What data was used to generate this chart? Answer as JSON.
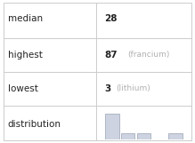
{
  "median": 28,
  "highest_value": 87,
  "highest_label": "francium",
  "lowest_value": 3,
  "lowest_label": "lithium",
  "hist_bar_heights": [
    4,
    1,
    1,
    0,
    1
  ],
  "hist_bar_color": "#cdd3e0",
  "hist_bar_edge_color": "#9aa2b4",
  "background_color": "#ffffff",
  "border_color": "#cccccc",
  "text_color_main": "#222222",
  "text_color_secondary": "#b0b0b0",
  "font_size": 7.5,
  "col_split": 0.495,
  "row_splits": [
    0.0,
    0.26,
    0.5,
    0.735,
    1.0
  ]
}
